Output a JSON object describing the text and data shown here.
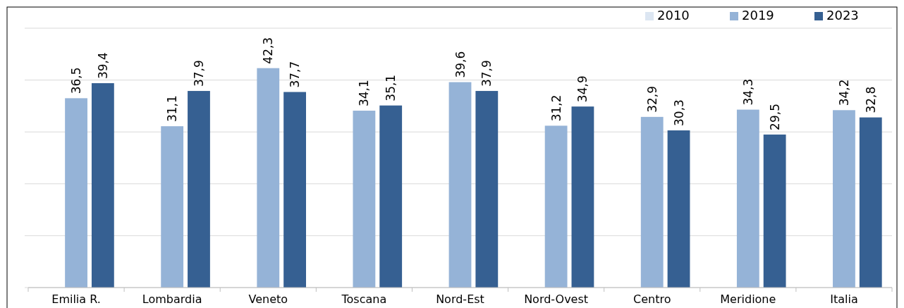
{
  "chart_data": {
    "type": "bar",
    "categories": [
      "Emilia R.",
      "Lombardia",
      "Veneto",
      "Toscana",
      "Nord-Est",
      "Nord-Ovest",
      "Centro",
      "Meridione",
      "Italia"
    ],
    "series": [
      {
        "name": "2010",
        "color": "#dce6f2",
        "values": [
          null,
          null,
          null,
          null,
          null,
          null,
          null,
          null,
          null
        ]
      },
      {
        "name": "2019",
        "color": "#95b3d7",
        "values": [
          36.5,
          31.1,
          42.3,
          34.1,
          39.6,
          31.2,
          32.9,
          34.3,
          34.2
        ],
        "value_labels": [
          "36,5",
          "31,1",
          "42,3",
          "34,1",
          "39,6",
          "31,2",
          "32,9",
          "34,3",
          "34,2"
        ]
      },
      {
        "name": "2023",
        "color": "#366092",
        "values": [
          39.4,
          37.9,
          37.7,
          35.1,
          37.9,
          34.9,
          30.3,
          29.5,
          32.8
        ],
        "value_labels": [
          "39,4",
          "37,9",
          "37,7",
          "35,1",
          "37,9",
          "34,9",
          "30,3",
          "29,5",
          "32,8"
        ]
      }
    ],
    "ylim": [
      0,
      50
    ],
    "yticks": [
      {
        "value": 0,
        "label": null
      },
      {
        "value": 10,
        "label": null
      },
      {
        "value": 20,
        "label": null
      },
      {
        "value": 30,
        "label": null
      },
      {
        "value": 40,
        "label": null
      },
      {
        "value": 50,
        "label": null
      }
    ],
    "tick_labels": "x",
    "grid": "y",
    "legend": "top right"
  }
}
